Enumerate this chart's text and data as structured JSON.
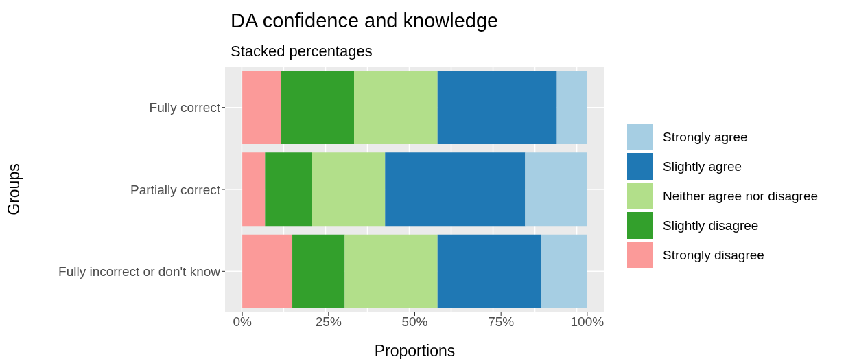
{
  "chart_data": {
    "type": "bar",
    "title": "DA confidence and knowledge",
    "subtitle": "Stacked percentages",
    "xlabel": "Proportions",
    "ylabel": "Groups",
    "orientation": "horizontal",
    "stacked": true,
    "categories": [
      "Fully correct",
      "Partially correct",
      "Fully incorrect or don't know"
    ],
    "series": [
      {
        "name": "Strongly disagree",
        "color": "#fb9a99",
        "values": [
          11.3,
          6.6,
          14.5
        ]
      },
      {
        "name": "Slightly disagree",
        "color": "#33a02c",
        "values": [
          21.1,
          13.5,
          15.2
        ]
      },
      {
        "name": "Neither agree nor disagree",
        "color": "#b2df8a",
        "values": [
          24.2,
          21.3,
          26.9
        ]
      },
      {
        "name": "Slightly agree",
        "color": "#1f78b4",
        "values": [
          34.6,
          40.6,
          30.1
        ]
      },
      {
        "name": "Strongly agree",
        "color": "#a6cee3",
        "values": [
          8.8,
          18.0,
          13.3
        ]
      }
    ],
    "xlim": [
      -5,
      105
    ],
    "xticks": [
      {
        "value": 0,
        "label": "0%"
      },
      {
        "value": 25,
        "label": "25%"
      },
      {
        "value": 50,
        "label": "50%"
      },
      {
        "value": 75,
        "label": "75%"
      },
      {
        "value": 100,
        "label": "100%"
      }
    ],
    "grid": true,
    "legend": "right"
  }
}
